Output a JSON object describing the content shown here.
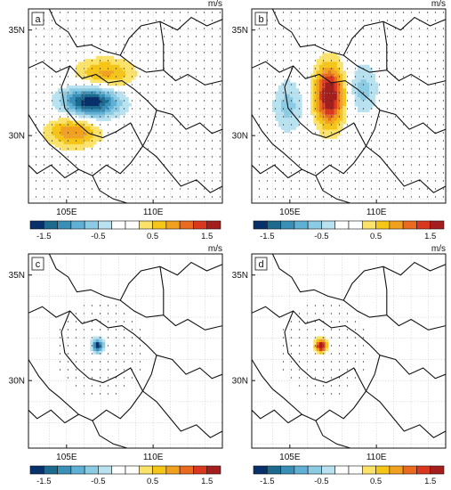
{
  "figure": {
    "colorbar_levels": [
      -1.75,
      -1.5,
      -1.25,
      -1.0,
      -0.75,
      -0.5,
      -0.25,
      0,
      0.25,
      0.5,
      0.75,
      1.0,
      1.25,
      1.5,
      1.75
    ],
    "colorbar_colors": [
      "#08306b",
      "#1d6a8f",
      "#3a8fb7",
      "#5fb0d4",
      "#8ccbe4",
      "#b9e2f0",
      "#ffffff",
      "#ffffff",
      "#fbe36a",
      "#f5c518",
      "#f2a01f",
      "#ea6a1f",
      "#d9381e",
      "#a51e1e"
    ],
    "colorbar_ticks": [
      "-1.5",
      "-0.5",
      "0.5",
      "1.5"
    ],
    "colorbar_tick_values": [
      -1.5,
      -0.5,
      0.5,
      1.5
    ],
    "lon_range": [
      102.8,
      114.0
    ],
    "lat_range": [
      26.8,
      36.0
    ],
    "x_ticks": [
      "105E",
      "110E"
    ],
    "x_tick_values": [
      105,
      110
    ],
    "y_ticks": [
      "35N",
      "30N"
    ],
    "y_tick_values": [
      35,
      30
    ]
  },
  "chart_data": [
    {
      "type": "heatmap",
      "panel_label": "a",
      "units": "m/s",
      "value_range": [
        -1.75,
        1.75
      ],
      "centers": [
        {
          "lon": 107.2,
          "lat": 32.9,
          "amplitude": 0.85,
          "sx": 1.7,
          "sy": 0.75
        },
        {
          "lon": 106.4,
          "lat": 31.6,
          "amplitude": -1.75,
          "sx": 1.65,
          "sy": 0.75
        },
        {
          "lon": 105.4,
          "lat": 30.2,
          "amplitude": 1.0,
          "sx": 1.5,
          "sy": 0.75
        }
      ]
    },
    {
      "type": "heatmap",
      "panel_label": "b",
      "units": "m/s",
      "value_range": [
        -1.75,
        1.75
      ],
      "centers": [
        {
          "lon": 104.9,
          "lat": 31.4,
          "amplitude": -0.6,
          "sx": 0.9,
          "sy": 1.3
        },
        {
          "lon": 107.3,
          "lat": 31.9,
          "amplitude": 1.85,
          "sx": 0.85,
          "sy": 1.45
        },
        {
          "lon": 109.2,
          "lat": 32.2,
          "amplitude": -0.6,
          "sx": 0.9,
          "sy": 1.25
        }
      ]
    },
    {
      "type": "heatmap",
      "panel_label": "c",
      "units": "m/s",
      "value_range": [
        -1.75,
        1.75
      ],
      "centers": [
        {
          "lon": 106.8,
          "lat": 31.65,
          "amplitude": -1.7,
          "sx": 0.32,
          "sy": 0.3
        }
      ]
    },
    {
      "type": "heatmap",
      "panel_label": "d",
      "units": "m/s",
      "value_range": [
        -1.75,
        1.75
      ],
      "centers": [
        {
          "lon": 106.8,
          "lat": 31.65,
          "amplitude": 1.85,
          "sx": 0.32,
          "sy": 0.3
        }
      ]
    }
  ]
}
